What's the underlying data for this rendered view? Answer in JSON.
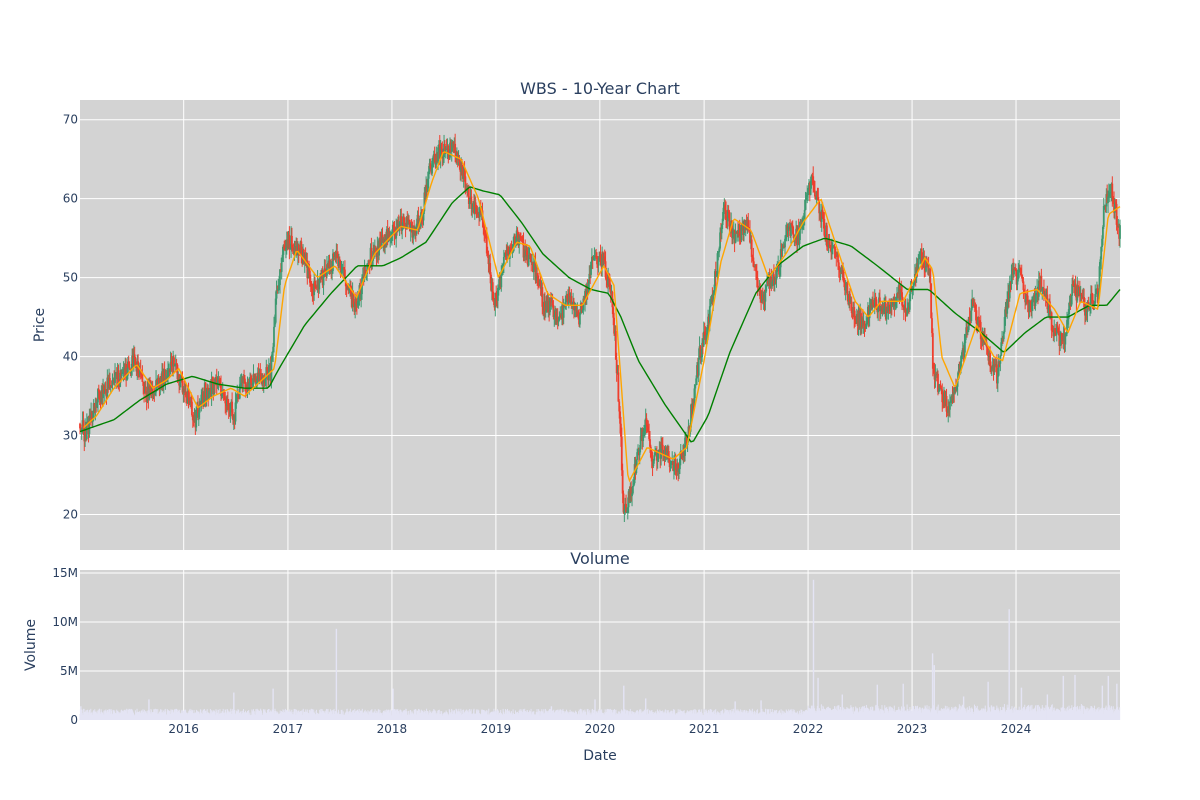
{
  "chart_data": {
    "type": "candlestick",
    "title": "WBS - 10-Year Chart",
    "volume_title": "Volume",
    "xlabel": "Date",
    "ylabel": "Price",
    "volume_ylabel": "Volume",
    "x_range": [
      "2015-01-02",
      "2024-12-31"
    ],
    "price_ylim": [
      15.5,
      72.5
    ],
    "volume_ylim": [
      0,
      15300000
    ],
    "price_yticks": [
      20,
      30,
      40,
      50,
      60,
      70
    ],
    "volume_yticks": [
      0,
      5000000,
      10000000,
      15000000
    ],
    "volume_ytick_labels": [
      "0",
      "5M",
      "10M",
      "15M"
    ],
    "x_ticks": [
      "2016-01-01",
      "2017-01-01",
      "2018-01-01",
      "2019-01-01",
      "2020-01-01",
      "2021-01-01",
      "2022-01-01",
      "2023-01-01",
      "2024-01-01"
    ],
    "x_tick_labels": [
      "2016",
      "2017",
      "2018",
      "2019",
      "2020",
      "2021",
      "2022",
      "2023",
      "2024"
    ],
    "grid": true,
    "price_close_keypoints": [
      [
        "2015-01-02",
        31.5
      ],
      [
        "2015-01-20",
        30.0
      ],
      [
        "2015-03-01",
        34.5
      ],
      [
        "2015-04-15",
        36.5
      ],
      [
        "2015-06-01",
        37.5
      ],
      [
        "2015-07-15",
        39.5
      ],
      [
        "2015-08-25",
        35.0
      ],
      [
        "2015-10-15",
        37.0
      ],
      [
        "2015-11-25",
        39.5
      ],
      [
        "2016-01-10",
        35.0
      ],
      [
        "2016-02-10",
        32.0
      ],
      [
        "2016-03-15",
        35.5
      ],
      [
        "2016-05-01",
        36.5
      ],
      [
        "2016-06-27",
        32.5
      ],
      [
        "2016-07-20",
        36.5
      ],
      [
        "2016-09-15",
        37.0
      ],
      [
        "2016-11-01",
        38.0
      ],
      [
        "2016-11-20",
        47.0
      ],
      [
        "2016-12-20",
        54.5
      ],
      [
        "2017-02-15",
        53.5
      ],
      [
        "2017-04-01",
        48.5
      ],
      [
        "2017-05-15",
        50.5
      ],
      [
        "2017-06-20",
        53.0
      ],
      [
        "2017-08-25",
        46.0
      ],
      [
        "2017-10-15",
        52.5
      ],
      [
        "2017-12-15",
        55.0
      ],
      [
        "2018-02-05",
        57.0
      ],
      [
        "2018-03-15",
        56.0
      ],
      [
        "2018-04-15",
        57.5
      ],
      [
        "2018-05-15",
        64.0
      ],
      [
        "2018-06-15",
        66.0
      ],
      [
        "2018-08-15",
        66.0
      ],
      [
        "2018-10-01",
        60.0
      ],
      [
        "2018-11-15",
        58.0
      ],
      [
        "2018-12-24",
        46.5
      ],
      [
        "2019-02-01",
        52.0
      ],
      [
        "2019-03-15",
        55.5
      ],
      [
        "2019-05-15",
        51.0
      ],
      [
        "2019-06-15",
        47.0
      ],
      [
        "2019-08-15",
        45.0
      ],
      [
        "2019-09-15",
        48.0
      ],
      [
        "2019-10-15",
        44.5
      ],
      [
        "2019-12-15",
        53.0
      ],
      [
        "2020-01-15",
        52.0
      ],
      [
        "2020-02-15",
        47.0
      ],
      [
        "2020-03-15",
        30.0
      ],
      [
        "2020-03-23",
        19.5
      ],
      [
        "2020-04-20",
        23.0
      ],
      [
        "2020-06-08",
        32.0
      ],
      [
        "2020-06-30",
        27.0
      ],
      [
        "2020-08-15",
        28.0
      ],
      [
        "2020-10-01",
        25.5
      ],
      [
        "2020-11-09",
        31.0
      ],
      [
        "2020-12-15",
        40.0
      ],
      [
        "2021-01-15",
        44.0
      ],
      [
        "2021-03-15",
        59.0
      ],
      [
        "2021-04-15",
        55.0
      ],
      [
        "2021-06-01",
        56.5
      ],
      [
        "2021-07-20",
        47.5
      ],
      [
        "2021-09-15",
        50.5
      ],
      [
        "2021-10-20",
        56.5
      ],
      [
        "2021-12-01",
        55.0
      ],
      [
        "2022-01-15",
        63.0
      ],
      [
        "2022-03-08",
        55.0
      ],
      [
        "2022-04-15",
        52.0
      ],
      [
        "2022-06-01",
        46.5
      ],
      [
        "2022-07-15",
        43.5
      ],
      [
        "2022-08-15",
        47.5
      ],
      [
        "2022-10-01",
        45.5
      ],
      [
        "2022-11-15",
        48.5
      ],
      [
        "2022-12-15",
        46.0
      ],
      [
        "2023-02-01",
        53.5
      ],
      [
        "2023-03-05",
        50.0
      ],
      [
        "2023-03-15",
        38.5
      ],
      [
        "2023-05-04",
        33.5
      ],
      [
        "2023-06-15",
        38.0
      ],
      [
        "2023-07-31",
        46.5
      ],
      [
        "2023-09-15",
        41.0
      ],
      [
        "2023-10-27",
        37.5
      ],
      [
        "2023-12-15",
        50.5
      ],
      [
        "2024-01-15",
        50.0
      ],
      [
        "2024-02-15",
        46.0
      ],
      [
        "2024-04-01",
        49.5
      ],
      [
        "2024-05-15",
        43.0
      ],
      [
        "2024-06-20",
        42.0
      ],
      [
        "2024-07-20",
        49.0
      ],
      [
        "2024-09-01",
        46.0
      ],
      [
        "2024-10-15",
        48.0
      ],
      [
        "2024-11-06",
        59.0
      ],
      [
        "2024-11-26",
        62.0
      ],
      [
        "2024-12-31",
        55.5
      ]
    ],
    "sma_short_keypoints": [
      [
        "2015-01-15",
        31.0
      ],
      [
        "2015-03-01",
        32.5
      ],
      [
        "2015-05-01",
        36.0
      ],
      [
        "2015-07-20",
        39.0
      ],
      [
        "2015-09-15",
        36.0
      ],
      [
        "2015-11-01",
        37.0
      ],
      [
        "2015-12-15",
        38.5
      ],
      [
        "2016-02-20",
        33.5
      ],
      [
        "2016-04-15",
        35.0
      ],
      [
        "2016-06-15",
        36.0
      ],
      [
        "2016-08-01",
        35.0
      ],
      [
        "2016-10-01",
        37.0
      ],
      [
        "2016-11-15",
        38.5
      ],
      [
        "2016-12-20",
        49.0
      ],
      [
        "2017-02-01",
        53.5
      ],
      [
        "2017-04-15",
        50.0
      ],
      [
        "2017-06-15",
        51.5
      ],
      [
        "2017-08-30",
        47.5
      ],
      [
        "2017-11-01",
        53.0
      ],
      [
        "2018-02-01",
        56.5
      ],
      [
        "2018-04-01",
        56.0
      ],
      [
        "2018-05-20",
        62.0
      ],
      [
        "2018-07-01",
        66.0
      ],
      [
        "2018-09-01",
        65.0
      ],
      [
        "2018-11-01",
        60.0
      ],
      [
        "2019-01-10",
        50.0
      ],
      [
        "2019-03-15",
        54.5
      ],
      [
        "2019-05-01",
        54.0
      ],
      [
        "2019-07-01",
        48.0
      ],
      [
        "2019-09-01",
        46.5
      ],
      [
        "2019-11-01",
        46.5
      ],
      [
        "2020-01-15",
        51.5
      ],
      [
        "2020-02-20",
        49.0
      ],
      [
        "2020-04-10",
        24.0
      ],
      [
        "2020-06-15",
        28.5
      ],
      [
        "2020-09-15",
        27.0
      ],
      [
        "2020-11-01",
        28.5
      ],
      [
        "2021-01-01",
        39.5
      ],
      [
        "2021-03-01",
        52.0
      ],
      [
        "2021-04-15",
        57.5
      ],
      [
        "2021-06-15",
        56.0
      ],
      [
        "2021-08-15",
        50.0
      ],
      [
        "2021-10-15",
        53.0
      ],
      [
        "2021-12-15",
        57.0
      ],
      [
        "2022-02-15",
        60.0
      ],
      [
        "2022-04-15",
        53.5
      ],
      [
        "2022-06-15",
        47.0
      ],
      [
        "2022-08-01",
        45.0
      ],
      [
        "2022-09-15",
        47.0
      ],
      [
        "2022-12-01",
        47.0
      ],
      [
        "2023-02-15",
        52.5
      ],
      [
        "2023-03-15",
        51.0
      ],
      [
        "2023-04-15",
        40.0
      ],
      [
        "2023-06-01",
        36.0
      ],
      [
        "2023-08-15",
        44.0
      ],
      [
        "2023-10-15",
        40.0
      ],
      [
        "2023-11-15",
        39.5
      ],
      [
        "2024-01-15",
        48.0
      ],
      [
        "2024-03-15",
        48.5
      ],
      [
        "2024-05-15",
        46.0
      ],
      [
        "2024-07-01",
        43.0
      ],
      [
        "2024-08-15",
        47.0
      ],
      [
        "2024-10-15",
        46.0
      ],
      [
        "2024-11-20",
        58.0
      ],
      [
        "2024-12-31",
        59.0
      ]
    ],
    "sma_long_keypoints": [
      [
        "2015-01-02",
        30.5
      ],
      [
        "2015-05-01",
        32.0
      ],
      [
        "2015-08-01",
        34.5
      ],
      [
        "2015-11-01",
        36.5
      ],
      [
        "2016-02-01",
        37.5
      ],
      [
        "2016-05-01",
        36.5
      ],
      [
        "2016-08-01",
        36.0
      ],
      [
        "2016-10-25",
        36.0
      ],
      [
        "2016-12-01",
        38.5
      ],
      [
        "2017-03-01",
        44.0
      ],
      [
        "2017-06-01",
        48.0
      ],
      [
        "2017-09-01",
        51.5
      ],
      [
        "2017-12-01",
        51.5
      ],
      [
        "2018-02-01",
        52.5
      ],
      [
        "2018-05-01",
        54.5
      ],
      [
        "2018-08-01",
        59.5
      ],
      [
        "2018-10-01",
        61.5
      ],
      [
        "2018-11-15",
        61.0
      ],
      [
        "2019-01-15",
        60.5
      ],
      [
        "2019-04-01",
        57.0
      ],
      [
        "2019-06-15",
        53.0
      ],
      [
        "2019-09-15",
        50.0
      ],
      [
        "2019-12-01",
        48.5
      ],
      [
        "2020-02-01",
        48.0
      ],
      [
        "2020-03-15",
        45.0
      ],
      [
        "2020-05-15",
        39.5
      ],
      [
        "2020-08-15",
        34.0
      ],
      [
        "2020-11-20",
        29.0
      ],
      [
        "2021-01-15",
        32.5
      ],
      [
        "2021-04-01",
        40.5
      ],
      [
        "2021-07-01",
        48.0
      ],
      [
        "2021-09-15",
        51.5
      ],
      [
        "2021-12-15",
        54.0
      ],
      [
        "2022-03-01",
        55.0
      ],
      [
        "2022-06-01",
        54.0
      ],
      [
        "2022-09-01",
        51.5
      ],
      [
        "2022-12-15",
        48.5
      ],
      [
        "2023-03-01",
        48.5
      ],
      [
        "2023-06-01",
        45.5
      ],
      [
        "2023-09-01",
        43.0
      ],
      [
        "2023-11-20",
        40.5
      ],
      [
        "2024-02-01",
        43.0
      ],
      [
        "2024-04-15",
        45.0
      ],
      [
        "2024-07-01",
        45.0
      ],
      [
        "2024-09-15",
        46.5
      ],
      [
        "2024-11-15",
        46.5
      ],
      [
        "2024-12-31",
        48.5
      ]
    ],
    "volume_spikes": [
      [
        "2015-01-05",
        1400000
      ],
      [
        "2015-09-01",
        2100000
      ],
      [
        "2016-06-25",
        2800000
      ],
      [
        "2016-11-10",
        3200000
      ],
      [
        "2017-06-20",
        9300000
      ],
      [
        "2018-01-05",
        3200000
      ],
      [
        "2019-07-15",
        1400000
      ],
      [
        "2019-12-15",
        2100000
      ],
      [
        "2020-03-25",
        3500000
      ],
      [
        "2020-06-10",
        2200000
      ],
      [
        "2021-04-20",
        1900000
      ],
      [
        "2021-07-20",
        2000000
      ],
      [
        "2022-01-20",
        14300000
      ],
      [
        "2022-02-05",
        4300000
      ],
      [
        "2022-05-01",
        2600000
      ],
      [
        "2022-09-01",
        3600000
      ],
      [
        "2022-12-01",
        3700000
      ],
      [
        "2023-03-14",
        6800000
      ],
      [
        "2023-03-20",
        5600000
      ],
      [
        "2023-07-01",
        2400000
      ],
      [
        "2023-09-25",
        3900000
      ],
      [
        "2023-12-08",
        11300000
      ],
      [
        "2024-01-20",
        3300000
      ],
      [
        "2024-04-20",
        2600000
      ],
      [
        "2024-06-15",
        4500000
      ],
      [
        "2024-07-26",
        4600000
      ],
      [
        "2024-10-30",
        3500000
      ],
      [
        "2024-11-20",
        4500000
      ],
      [
        "2024-12-20",
        3700000
      ]
    ],
    "colors": {
      "increasing": "#3d9970",
      "decreasing": "#ef3e2d",
      "sma_short": "#ffa500",
      "sma_long": "#008000",
      "volume": "#e4e4f4",
      "plot_bg": "#d3d3d3",
      "grid": "#ffffff",
      "text": "#2a3f5f"
    }
  }
}
